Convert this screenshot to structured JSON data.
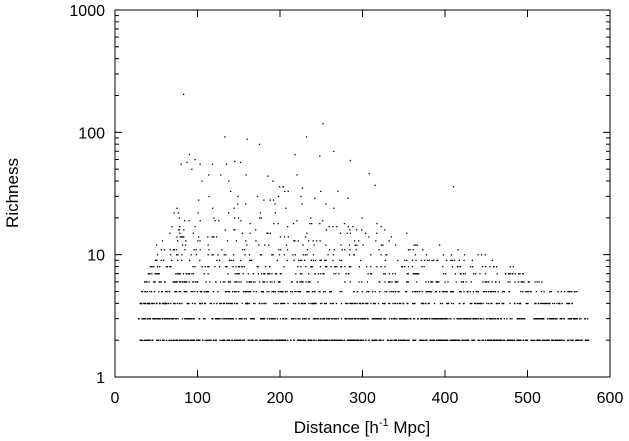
{
  "chart_data": {
    "type": "scatter",
    "title": "",
    "xlabel_parts": [
      "Distance [h",
      "-1",
      " Mpc]"
    ],
    "ylabel": "Richness",
    "xlim": [
      0,
      600
    ],
    "ylim": [
      1,
      1000
    ],
    "yscale": "log",
    "grid": false,
    "legend": "none",
    "marker_color": "#000000",
    "x_ticks": [
      {
        "value": 0,
        "label": "0"
      },
      {
        "value": 100,
        "label": "100"
      },
      {
        "value": 200,
        "label": "200"
      },
      {
        "value": 300,
        "label": "300"
      },
      {
        "value": 400,
        "label": "400"
      },
      {
        "value": 500,
        "label": "500"
      },
      {
        "value": 600,
        "label": "600"
      }
    ],
    "y_ticks": [
      {
        "value": 1,
        "label": "1"
      },
      {
        "value": 10,
        "label": "10"
      },
      {
        "value": 100,
        "label": "100"
      },
      {
        "value": 1000,
        "label": "1000"
      }
    ],
    "bands": [
      {
        "y": 2,
        "x_range": [
          28,
          575
        ],
        "count": 560
      },
      {
        "y": 3,
        "x_range": [
          28,
          575
        ],
        "count": 430
      },
      {
        "y": 4,
        "x_range": [
          30,
          573
        ],
        "count": 280
      },
      {
        "y": 5,
        "x_range": [
          32,
          560
        ],
        "count": 220
      },
      {
        "y": 6,
        "x_range": [
          35,
          520
        ],
        "count": 150
      },
      {
        "y": 7,
        "x_range": [
          40,
          510
        ],
        "count": 100
      },
      {
        "y": 8,
        "x_range": [
          40,
          490
        ],
        "count": 80
      },
      {
        "y": 9,
        "x_range": [
          45,
          470
        ],
        "count": 60
      },
      {
        "y": 10,
        "x_range": [
          45,
          450
        ],
        "count": 45
      },
      {
        "y": 11,
        "x_range": [
          50,
          420
        ],
        "count": 30
      },
      {
        "y": 12,
        "x_range": [
          50,
          410
        ],
        "count": 25
      },
      {
        "y": 13,
        "x_range": [
          55,
          380
        ],
        "count": 20
      },
      {
        "y": 14,
        "x_range": [
          55,
          370
        ],
        "count": 18
      },
      {
        "y": 15,
        "x_range": [
          60,
          360
        ],
        "count": 15
      },
      {
        "y": 16,
        "x_range": [
          60,
          340
        ],
        "count": 12
      },
      {
        "y": 17,
        "x_range": [
          65,
          330
        ],
        "count": 10
      },
      {
        "y": 18,
        "x_range": [
          65,
          320
        ],
        "count": 9
      },
      {
        "y": 19,
        "x_range": [
          70,
          310
        ],
        "count": 8
      },
      {
        "y": 20,
        "x_range": [
          70,
          300
        ],
        "count": 8
      },
      {
        "y": 22,
        "x_range": [
          70,
          290
        ],
        "count": 6
      },
      {
        "y": 24,
        "x_range": [
          75,
          280
        ],
        "count": 5
      },
      {
        "y": 26,
        "x_range": [
          80,
          270
        ],
        "count": 5
      },
      {
        "y": 28,
        "x_range": [
          90,
          260
        ],
        "count": 4
      },
      {
        "y": 30,
        "x_range": [
          95,
          250
        ],
        "count": 4
      },
      {
        "y": 33,
        "x_range": [
          100,
          250
        ],
        "count": 3
      },
      {
        "y": 36,
        "x_range": [
          110,
          240
        ],
        "count": 3
      },
      {
        "y": 40,
        "x_range": [
          100,
          240
        ],
        "count": 3
      },
      {
        "y": 45,
        "x_range": [
          90,
          230
        ],
        "count": 3
      }
    ],
    "points": [
      {
        "x": 83,
        "y": 205
      },
      {
        "x": 252,
        "y": 118
      },
      {
        "x": 232,
        "y": 92
      },
      {
        "x": 133,
        "y": 92
      },
      {
        "x": 160,
        "y": 88
      },
      {
        "x": 175,
        "y": 80
      },
      {
        "x": 265,
        "y": 70
      },
      {
        "x": 90,
        "y": 66
      },
      {
        "x": 218,
        "y": 66
      },
      {
        "x": 248,
        "y": 64
      },
      {
        "x": 97,
        "y": 60
      },
      {
        "x": 285,
        "y": 59
      },
      {
        "x": 87,
        "y": 57
      },
      {
        "x": 145,
        "y": 58
      },
      {
        "x": 152,
        "y": 57
      },
      {
        "x": 80,
        "y": 55
      },
      {
        "x": 103,
        "y": 55
      },
      {
        "x": 118,
        "y": 55
      },
      {
        "x": 135,
        "y": 55
      },
      {
        "x": 93,
        "y": 50
      },
      {
        "x": 308,
        "y": 46
      },
      {
        "x": 128,
        "y": 45
      },
      {
        "x": 185,
        "y": 44
      },
      {
        "x": 410,
        "y": 36
      },
      {
        "x": 315,
        "y": 37
      },
      {
        "x": 227,
        "y": 35
      },
      {
        "x": 140,
        "y": 33
      },
      {
        "x": 270,
        "y": 33
      },
      {
        "x": 198,
        "y": 30
      },
      {
        "x": 242,
        "y": 29
      },
      {
        "x": 282,
        "y": 29
      }
    ]
  }
}
